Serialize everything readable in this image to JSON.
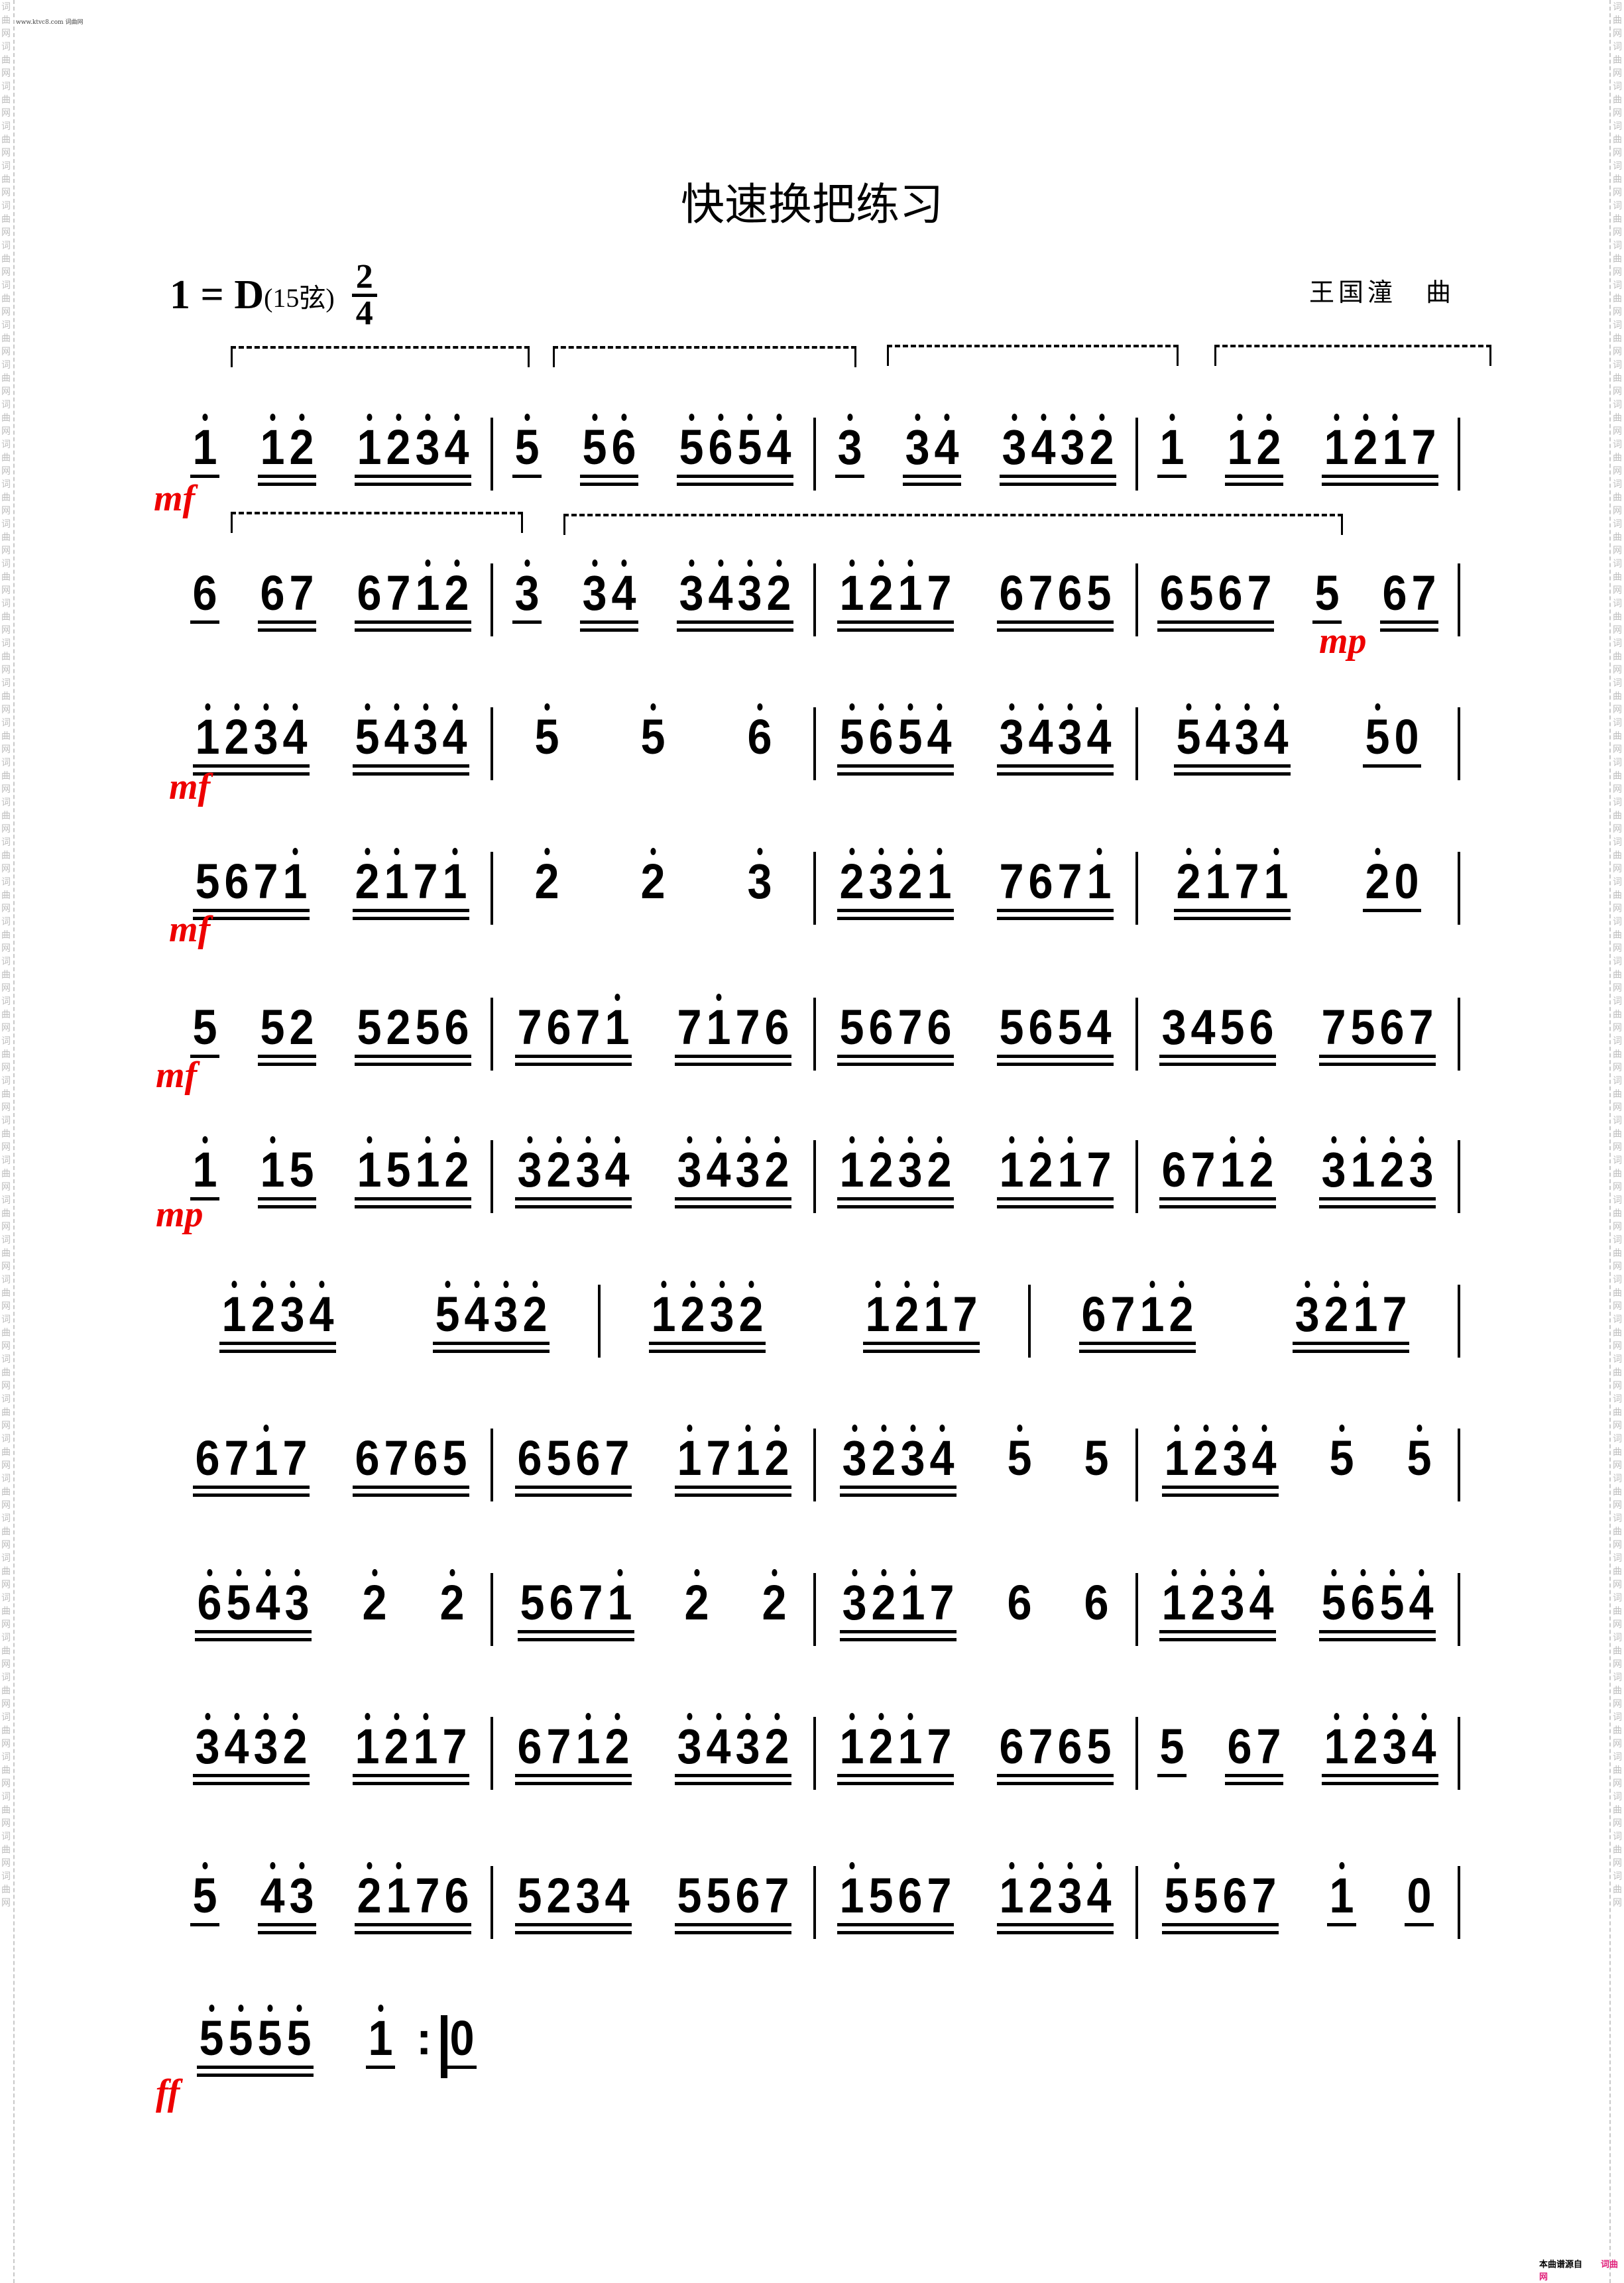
{
  "watermark": "www.ktvc8.com 词曲网",
  "margin_text": "词曲网词曲网词曲网词曲网词曲网词曲网词曲网词曲网词曲网词曲网词曲网词曲网词曲网词曲网词曲网词曲网词曲网词曲网词曲网词曲网词曲网词曲网词曲网词曲网词曲网词曲网词曲网词曲网词曲网词曲网词曲网词曲网词曲网词曲网词曲网词曲网词曲网词曲网词曲网词曲网词曲网词曲网词曲网词曲网词曲网词曲网词曲网词曲网",
  "title": "快速换把练习",
  "key": {
    "tonic": "1 = D",
    "strings": "(15弦)",
    "time_top": "2",
    "time_bottom": "4"
  },
  "composer": "王国潼　曲",
  "dynamics": [
    "mf",
    "mf",
    "mp",
    "mf",
    "mf",
    "mp",
    "mf",
    "ff"
  ],
  "repeat_sign": ":",
  "footer": {
    "label": "本曲谱源自",
    "site": "词曲网"
  },
  "accent_color": "#e00000",
  "arrow_colors": {
    "up": "#e00000",
    "down": "#008000"
  },
  "lines": [
    [
      [
        [
          "1'",
          1
        ],
        [
          "1' 2'",
          2
        ],
        [
          "1' 2' 3' 4'",
          2
        ]
      ],
      [
        [
          "5'",
          1
        ],
        [
          "5' 6'",
          2
        ],
        [
          "5' 6' 5' 4'",
          2
        ]
      ],
      [
        [
          "3'",
          1
        ],
        [
          "3' 4'",
          2
        ],
        [
          "3' 4' 3' 2'",
          2
        ]
      ],
      [
        [
          "1'",
          1
        ],
        [
          "1' 2'",
          2
        ],
        [
          "1' 2' 1' 7",
          2
        ]
      ]
    ],
    [
      [
        [
          "6",
          1
        ],
        [
          "6 7",
          2
        ],
        [
          "6 7 1' 2'",
          2
        ]
      ],
      [
        [
          "3'",
          1
        ],
        [
          "3' 4'",
          2
        ],
        [
          "3' 4' 3' 2'",
          2
        ]
      ],
      [
        [
          "1' 2' 1' 7",
          2
        ],
        [
          "6 7 6 5",
          2
        ]
      ],
      [
        [
          "6 5 6 7",
          2
        ],
        [
          "5",
          1
        ],
        [
          "6 7",
          2
        ]
      ]
    ],
    [
      [
        [
          "1' 2' 3' 4'",
          2
        ],
        [
          "5' 4' 3' 4'",
          2
        ]
      ],
      [
        [
          "5'",
          0
        ],
        [
          "5'",
          0
        ],
        [
          "6'",
          0
        ]
      ],
      [
        [
          "5' 6' 5' 4'",
          2
        ],
        [
          "3' 4' 3' 4'",
          2
        ]
      ],
      [
        [
          "5' 4' 3' 4'",
          2
        ],
        [
          "5' 0",
          1
        ]
      ]
    ],
    [
      [
        [
          "5 6 7 1'",
          2
        ],
        [
          "2' 1' 7 1'",
          2
        ]
      ],
      [
        [
          "2'",
          0
        ],
        [
          "2'",
          0
        ],
        [
          "3'",
          0
        ]
      ],
      [
        [
          "2' 3' 2' 1'",
          2
        ],
        [
          "7 6 7 1'",
          2
        ]
      ],
      [
        [
          "2' 1' 7 1'",
          2
        ],
        [
          "2' 0",
          1
        ]
      ]
    ],
    [
      [
        [
          "5",
          1
        ],
        [
          "5 2",
          2
        ],
        [
          "5 2 5 6",
          2
        ]
      ],
      [
        [
          "7 6 7 1'",
          2
        ],
        [
          "7 1' 7 6",
          2
        ]
      ],
      [
        [
          "5 6 7 6",
          2
        ],
        [
          "5 6 5 4",
          2
        ]
      ],
      [
        [
          "3 4 5 6",
          2
        ],
        [
          "7 5 6 7",
          2
        ]
      ]
    ],
    [
      [
        [
          "1'",
          1
        ],
        [
          "1' 5",
          2
        ],
        [
          "1' 5 1' 2'",
          2
        ]
      ],
      [
        [
          "3' 2' 3' 4'",
          2
        ],
        [
          "3' 4' 3' 2'",
          2
        ]
      ],
      [
        [
          "1' 2' 3' 2'",
          2
        ],
        [
          "1' 2' 1' 7",
          2
        ]
      ],
      [
        [
          "6 7 1' 2'",
          2
        ],
        [
          "3' 1' 2' 3'",
          2
        ]
      ]
    ],
    [
      [
        [
          "1' 2' 3' 4'",
          2
        ],
        [
          "5' 4' 3' 2'",
          2
        ]
      ],
      [
        [
          "1' 2' 3' 2'",
          2
        ],
        [
          "1' 2' 1' 7",
          2
        ]
      ],
      [
        [
          "6 7 1' 2'",
          2
        ],
        [
          "3' 2' 1' 7",
          2
        ]
      ]
    ],
    [
      [
        [
          "6 7 1' 7",
          2
        ],
        [
          "6 7 6 5",
          2
        ]
      ],
      [
        [
          "6 5 6 7",
          2
        ],
        [
          "1' 7 1' 2'",
          2
        ]
      ],
      [
        [
          "3' 2' 3' 4'",
          2
        ],
        [
          "5'",
          0
        ],
        [
          "5",
          0
        ]
      ],
      [
        [
          "1' 2' 3' 4'",
          2
        ],
        [
          "5'",
          0
        ],
        [
          "5'",
          0
        ]
      ]
    ],
    [
      [
        [
          "6' 5' 4' 3'",
          2
        ],
        [
          "2'",
          0
        ],
        [
          "2'",
          0
        ]
      ],
      [
        [
          "5 6 7 1'",
          2
        ],
        [
          "2'",
          0
        ],
        [
          "2'",
          0
        ]
      ],
      [
        [
          "3' 2' 1' 7",
          2
        ],
        [
          "6",
          0
        ],
        [
          "6",
          0
        ]
      ],
      [
        [
          "1' 2' 3' 4'",
          2
        ],
        [
          "5' 6' 5' 4'",
          2
        ]
      ]
    ],
    [
      [
        [
          "3' 4' 3' 2'",
          2
        ],
        [
          "1' 2' 1' 7",
          2
        ]
      ],
      [
        [
          "6 7 1' 2'",
          2
        ],
        [
          "3' 4' 3' 2'",
          2
        ]
      ],
      [
        [
          "1' 2' 1' 7",
          2
        ],
        [
          "6 7 6 5",
          2
        ]
      ],
      [
        [
          "5",
          1
        ],
        [
          "6 7",
          2
        ],
        [
          "1' 2' 3' 4'",
          2
        ]
      ]
    ],
    [
      [
        [
          "5'",
          1
        ],
        [
          "4' 3'",
          2
        ],
        [
          "2' 1' 7 6",
          2
        ]
      ],
      [
        [
          "5 2 3 4",
          2
        ],
        [
          "5 5 6 7",
          2
        ]
      ],
      [
        [
          "1' 5 6 7",
          2
        ],
        [
          "1' 2' 3' 4'",
          2
        ]
      ],
      [
        [
          "5' 5 6 7",
          2
        ],
        [
          "1'",
          1
        ],
        [
          "0",
          1
        ]
      ]
    ],
    [
      [
        [
          "5' 5' 5' 5'",
          2
        ],
        [
          "1'",
          1
        ],
        [
          "0",
          1
        ]
      ]
    ]
  ]
}
